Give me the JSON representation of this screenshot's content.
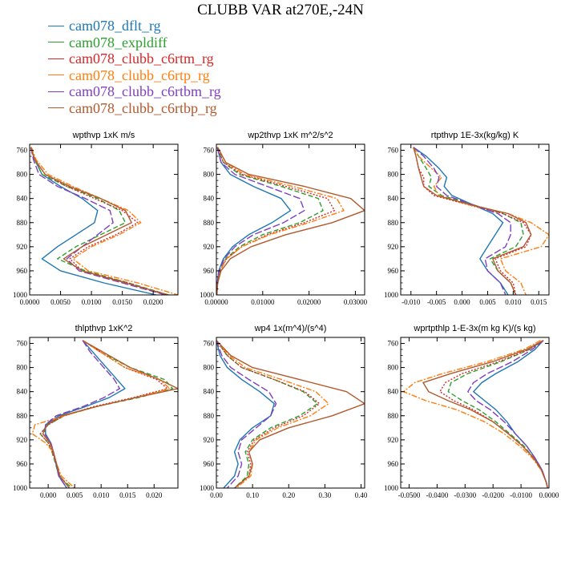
{
  "figure": {
    "title": "CLUBB VAR at270E,-24N"
  },
  "legend": [
    {
      "name": "cam078_dflt_rg",
      "color": "#1f77b4",
      "dash": "solid"
    },
    {
      "name": "cam078_expldiff",
      "color": "#2ca02c",
      "dash": "dash"
    },
    {
      "name": "cam078_clubb_c6rtm_rg",
      "color": "#d62728",
      "dash": "dot"
    },
    {
      "name": "cam078_clubb_c6rtp_rg",
      "color": "#ff7f0e",
      "dash": "dashdot"
    },
    {
      "name": "cam078_clubb_c6rtbm_rg",
      "color": "#7f3fbf",
      "dash": "longdash"
    },
    {
      "name": "cam078_clubb_c6rtbp_rg",
      "color": "#b05a2e",
      "dash": "solid"
    }
  ],
  "chart_data": [
    {
      "type": "line",
      "title": "wpthvp   1xK m/s",
      "xlim": [
        0,
        0.024
      ],
      "ylim": [
        1000,
        750
      ],
      "xticks": [
        0,
        0.005,
        0.01,
        0.015,
        0.02
      ],
      "xticklabels": [
        "0.0000",
        "0.0050",
        "0.0100",
        "0.0150",
        "0.0200"
      ],
      "yticks": [
        760,
        800,
        840,
        880,
        920,
        960,
        1000
      ],
      "y": [
        755,
        775,
        800,
        820,
        840,
        860,
        880,
        900,
        920,
        940,
        960,
        980,
        1000
      ],
      "series": [
        {
          "name": "cam078_dflt_rg",
          "values": [
            0.0002,
            0.0008,
            0.002,
            0.005,
            0.0085,
            0.011,
            0.0105,
            0.0075,
            0.0045,
            0.002,
            0.005,
            0.012,
            0.0205
          ]
        },
        {
          "name": "cam078_expldiff",
          "values": [
            0.0002,
            0.0008,
            0.002,
            0.006,
            0.011,
            0.0145,
            0.0155,
            0.0115,
            0.0075,
            0.0045,
            0.009,
            0.016,
            0.0225
          ]
        },
        {
          "name": "cam078_clubb_c6rtm_rg",
          "values": [
            0.0002,
            0.0008,
            0.0025,
            0.006,
            0.0105,
            0.015,
            0.0175,
            0.014,
            0.0095,
            0.0065,
            0.0085,
            0.016,
            0.022
          ]
        },
        {
          "name": "cam078_clubb_c6rtp_rg",
          "values": [
            0.0003,
            0.001,
            0.003,
            0.007,
            0.0115,
            0.016,
            0.018,
            0.0145,
            0.01,
            0.007,
            0.0095,
            0.0175,
            0.024
          ]
        },
        {
          "name": "cam078_clubb_c6rtbm_rg",
          "values": [
            0.0002,
            0.0006,
            0.0015,
            0.0045,
            0.009,
            0.013,
            0.0135,
            0.011,
            0.0085,
            0.006,
            0.008,
            0.015,
            0.022
          ]
        },
        {
          "name": "cam078_clubb_c6rtbp_rg",
          "values": [
            0.0002,
            0.0008,
            0.0025,
            0.0065,
            0.0115,
            0.0155,
            0.0165,
            0.0125,
            0.0085,
            0.0055,
            0.0085,
            0.0155,
            0.0225
          ]
        }
      ]
    },
    {
      "type": "line",
      "title": "wp2thvp   1xK m^2/s^2",
      "xlim": [
        0,
        0.032
      ],
      "ylim": [
        1000,
        750
      ],
      "xticks": [
        0,
        0.01,
        0.02,
        0.03
      ],
      "xticklabels": [
        "0.00000",
        "0.01000",
        "0.02000",
        "0.03000"
      ],
      "yticks": [
        760,
        800,
        840,
        880,
        920,
        960,
        1000
      ],
      "y": [
        755,
        780,
        800,
        820,
        840,
        860,
        880,
        900,
        920,
        940,
        960,
        980,
        1000
      ],
      "series": [
        {
          "name": "cam078_dflt_rg",
          "values": [
            0.0002,
            0.001,
            0.003,
            0.008,
            0.014,
            0.016,
            0.012,
            0.007,
            0.0035,
            0.0015,
            0.0005,
            0.0002,
            0.0001
          ]
        },
        {
          "name": "cam078_expldiff",
          "values": [
            0.0002,
            0.0015,
            0.005,
            0.014,
            0.022,
            0.023,
            0.018,
            0.01,
            0.005,
            0.002,
            0.0008,
            0.0002,
            0.0001
          ]
        },
        {
          "name": "cam078_clubb_c6rtm_rg",
          "values": [
            0.0002,
            0.0015,
            0.0055,
            0.015,
            0.024,
            0.0255,
            0.019,
            0.011,
            0.0055,
            0.0022,
            0.0008,
            0.0002,
            0.0001
          ]
        },
        {
          "name": "cam078_clubb_c6rtp_rg",
          "values": [
            0.0003,
            0.002,
            0.006,
            0.0165,
            0.026,
            0.0275,
            0.02,
            0.0115,
            0.0055,
            0.0022,
            0.0008,
            0.0002,
            0.0001
          ]
        },
        {
          "name": "cam078_clubb_c6rtbm_rg",
          "values": [
            0.0002,
            0.001,
            0.004,
            0.011,
            0.018,
            0.019,
            0.0145,
            0.008,
            0.004,
            0.0017,
            0.0006,
            0.0002,
            0.0001
          ]
        },
        {
          "name": "cam078_clubb_c6rtbp_rg",
          "values": [
            0.0003,
            0.002,
            0.007,
            0.019,
            0.029,
            0.032,
            0.025,
            0.015,
            0.0075,
            0.003,
            0.001,
            0.0003,
            0.0001
          ]
        }
      ]
    },
    {
      "type": "line",
      "title": "rtpthvp   1E-3x(kg/kg) K",
      "xlim": [
        -0.012,
        0.017
      ],
      "ylim": [
        1000,
        750
      ],
      "xticks": [
        -0.01,
        -0.005,
        0,
        0.005,
        0.01,
        0.015
      ],
      "xticklabels": [
        "-0.010",
        "-0.005",
        "0.000",
        "0.005",
        "0.010",
        "0.015"
      ],
      "yticks": [
        760,
        800,
        840,
        880,
        920,
        960,
        1000
      ],
      "y": [
        755,
        770,
        790,
        805,
        820,
        835,
        850,
        865,
        880,
        900,
        920,
        940,
        960,
        980,
        1000
      ],
      "series": [
        {
          "name": "cam078_dflt_rg",
          "values": [
            -0.0095,
            -0.007,
            -0.0045,
            -0.003,
            -0.0035,
            -0.002,
            0.002,
            0.006,
            0.008,
            0.0065,
            0.005,
            0.0035,
            0.005,
            0.0075,
            0.009
          ]
        },
        {
          "name": "cam078_expldiff",
          "values": [
            -0.0095,
            -0.0085,
            -0.007,
            -0.006,
            -0.0065,
            -0.004,
            0.002,
            0.008,
            0.0115,
            0.012,
            0.0105,
            0.0055,
            0.007,
            0.0095,
            0.0105
          ]
        },
        {
          "name": "cam078_clubb_c6rtm_rg",
          "values": [
            -0.0095,
            -0.009,
            -0.0085,
            -0.0075,
            -0.0075,
            -0.0055,
            0.001,
            0.008,
            0.012,
            0.0135,
            0.0125,
            0.0065,
            0.0075,
            0.01,
            0.0105
          ]
        },
        {
          "name": "cam078_clubb_c6rtp_rg",
          "values": [
            -0.0095,
            -0.0085,
            -0.006,
            -0.004,
            -0.0055,
            -0.0045,
            0.001,
            0.009,
            0.0135,
            0.017,
            0.0155,
            0.0075,
            0.0085,
            0.0115,
            0.0125
          ]
        },
        {
          "name": "cam078_clubb_c6rtbm_rg",
          "values": [
            -0.0095,
            -0.0075,
            -0.0055,
            -0.0045,
            -0.005,
            -0.003,
            0.002,
            0.007,
            0.0095,
            0.0095,
            0.0085,
            0.0045,
            0.005,
            0.0075,
            0.0085
          ]
        },
        {
          "name": "cam078_clubb_c6rtbp_rg",
          "values": [
            -0.0095,
            -0.009,
            -0.0085,
            -0.008,
            -0.0075,
            -0.005,
            0.0015,
            0.009,
            0.0125,
            0.0135,
            0.012,
            0.006,
            0.007,
            0.0095,
            0.0105
          ]
        }
      ]
    },
    {
      "type": "line",
      "title": "thlpthvp   1xK^2",
      "xlim": [
        -0.0035,
        0.0245
      ],
      "ylim": [
        1000,
        750
      ],
      "xticks": [
        0,
        0.005,
        0.01,
        0.015,
        0.02
      ],
      "xticklabels": [
        "0.000",
        "0.005",
        "0.010",
        "0.015",
        "0.020"
      ],
      "yticks": [
        760,
        800,
        840,
        880,
        920,
        960,
        1000
      ],
      "y": [
        755,
        775,
        800,
        820,
        835,
        850,
        865,
        880,
        895,
        910,
        925,
        940,
        960,
        980,
        1000
      ],
      "series": [
        {
          "name": "cam078_dflt_rg",
          "values": [
            0.0065,
            0.0085,
            0.011,
            0.013,
            0.0145,
            0.0115,
            0.007,
            0.002,
            -0.0005,
            -0.0005,
            0.0005,
            0.001,
            0.0015,
            0.002,
            0.0035
          ]
        },
        {
          "name": "cam078_expldiff",
          "values": [
            0.0065,
            0.01,
            0.0155,
            0.022,
            0.0235,
            0.017,
            0.009,
            0.003,
            0.0,
            -0.0015,
            0.0,
            0.0007,
            0.0014,
            0.002,
            0.0045
          ]
        },
        {
          "name": "cam078_clubb_c6rtm_rg",
          "values": [
            0.0065,
            0.01,
            0.0145,
            0.0205,
            0.0225,
            0.016,
            0.0085,
            0.003,
            0.0,
            -0.0015,
            0.0,
            0.0008,
            0.0015,
            0.0022,
            0.004
          ]
        },
        {
          "name": "cam078_clubb_c6rtp_rg",
          "values": [
            0.0065,
            0.01,
            0.0145,
            0.021,
            0.023,
            0.0165,
            0.009,
            0.003,
            -0.0025,
            -0.003,
            -0.0005,
            0.0009,
            0.0016,
            0.0025,
            0.005
          ]
        },
        {
          "name": "cam078_clubb_c6rtbm_rg",
          "values": [
            0.0065,
            0.008,
            0.0105,
            0.0125,
            0.0135,
            0.0105,
            0.0065,
            0.0015,
            -0.0005,
            -0.0007,
            0.0005,
            0.001,
            0.0015,
            0.002,
            0.0035
          ]
        },
        {
          "name": "cam078_clubb_c6rtbp_rg",
          "values": [
            0.0065,
            0.0105,
            0.0155,
            0.021,
            0.0245,
            0.0165,
            0.009,
            0.0025,
            -0.0002,
            -0.001,
            0.0003,
            0.001,
            0.0016,
            0.0022,
            0.004
          ]
        }
      ]
    },
    {
      "type": "line",
      "title": "wp4   1x(m^4)/(s^4)",
      "xlim": [
        0,
        0.41
      ],
      "ylim": [
        1000,
        750
      ],
      "xticks": [
        0,
        0.1,
        0.2,
        0.3,
        0.4
      ],
      "xticklabels": [
        "0.00",
        "0.10",
        "0.20",
        "0.30",
        "0.40"
      ],
      "yticks": [
        760,
        800,
        840,
        880,
        920,
        960,
        1000
      ],
      "y": [
        755,
        780,
        800,
        820,
        840,
        860,
        880,
        900,
        920,
        940,
        960,
        980,
        1000
      ],
      "series": [
        {
          "name": "cam078_dflt_rg",
          "values": [
            0.0,
            0.01,
            0.03,
            0.07,
            0.12,
            0.16,
            0.15,
            0.1,
            0.065,
            0.05,
            0.06,
            0.05,
            0.02
          ]
        },
        {
          "name": "cam078_expldiff",
          "values": [
            0.0,
            0.03,
            0.07,
            0.16,
            0.24,
            0.28,
            0.23,
            0.15,
            0.1,
            0.08,
            0.09,
            0.085,
            0.05
          ]
        },
        {
          "name": "cam078_clubb_c6rtm_rg",
          "values": [
            0.0,
            0.03,
            0.07,
            0.16,
            0.245,
            0.285,
            0.24,
            0.16,
            0.105,
            0.085,
            0.095,
            0.09,
            0.05
          ]
        },
        {
          "name": "cam078_clubb_c6rtp_rg",
          "values": [
            0.0,
            0.035,
            0.08,
            0.18,
            0.275,
            0.31,
            0.26,
            0.17,
            0.11,
            0.09,
            0.1,
            0.095,
            0.055
          ]
        },
        {
          "name": "cam078_clubb_c6rtbm_rg",
          "values": [
            0.0,
            0.015,
            0.04,
            0.09,
            0.145,
            0.165,
            0.15,
            0.11,
            0.07,
            0.06,
            0.07,
            0.06,
            0.03
          ]
        },
        {
          "name": "cam078_clubb_c6rtbp_rg",
          "values": [
            0.0,
            0.04,
            0.1,
            0.23,
            0.36,
            0.41,
            0.32,
            0.2,
            0.12,
            0.09,
            0.1,
            0.09,
            0.05
          ]
        }
      ]
    },
    {
      "type": "line",
      "title": "wprtpthlp   1-E-3x(m kg K)/(s kg)",
      "xlim": [
        -0.053,
        0.0
      ],
      "ylim": [
        1000,
        750
      ],
      "xticks": [
        -0.05,
        -0.04,
        -0.03,
        -0.02,
        -0.01,
        0
      ],
      "xticklabels": [
        "-0.0500",
        "-0.0400",
        "-0.0300",
        "-0.0200",
        "-0.0100",
        "0.0000"
      ],
      "yticks": [
        760,
        800,
        840,
        880,
        920,
        960,
        1000
      ],
      "y": [
        755,
        770,
        790,
        810,
        825,
        840,
        855,
        870,
        890,
        910,
        930,
        950,
        970,
        990,
        1000
      ],
      "series": [
        {
          "name": "cam078_dflt_rg",
          "values": [
            -0.002,
            -0.005,
            -0.011,
            -0.019,
            -0.024,
            -0.027,
            -0.023,
            -0.019,
            -0.015,
            -0.012,
            -0.008,
            -0.005,
            -0.0025,
            -0.001,
            -0.0005
          ]
        },
        {
          "name": "cam078_expldiff",
          "values": [
            -0.002,
            -0.007,
            -0.017,
            -0.029,
            -0.035,
            -0.036,
            -0.031,
            -0.025,
            -0.019,
            -0.014,
            -0.009,
            -0.0055,
            -0.0027,
            -0.001,
            -0.0005
          ]
        },
        {
          "name": "cam078_clubb_c6rtm_rg",
          "values": [
            -0.002,
            -0.007,
            -0.018,
            -0.031,
            -0.037,
            -0.039,
            -0.034,
            -0.027,
            -0.02,
            -0.0145,
            -0.0095,
            -0.0055,
            -0.0027,
            -0.001,
            -0.0005
          ]
        },
        {
          "name": "cam078_clubb_c6rtp_rg",
          "values": [
            -0.003,
            -0.009,
            -0.022,
            -0.038,
            -0.048,
            -0.052,
            -0.044,
            -0.033,
            -0.023,
            -0.016,
            -0.0105,
            -0.006,
            -0.0028,
            -0.001,
            -0.0005
          ]
        },
        {
          "name": "cam078_clubb_c6rtbm_rg",
          "values": [
            -0.002,
            -0.006,
            -0.013,
            -0.022,
            -0.027,
            -0.029,
            -0.026,
            -0.021,
            -0.016,
            -0.012,
            -0.008,
            -0.005,
            -0.0025,
            -0.001,
            -0.0005
          ]
        },
        {
          "name": "cam078_clubb_c6rtbp_rg",
          "values": [
            -0.002,
            -0.008,
            -0.02,
            -0.035,
            -0.045,
            -0.043,
            -0.036,
            -0.028,
            -0.02,
            -0.0145,
            -0.0095,
            -0.0055,
            -0.0027,
            -0.001,
            -0.0005
          ]
        }
      ]
    }
  ]
}
